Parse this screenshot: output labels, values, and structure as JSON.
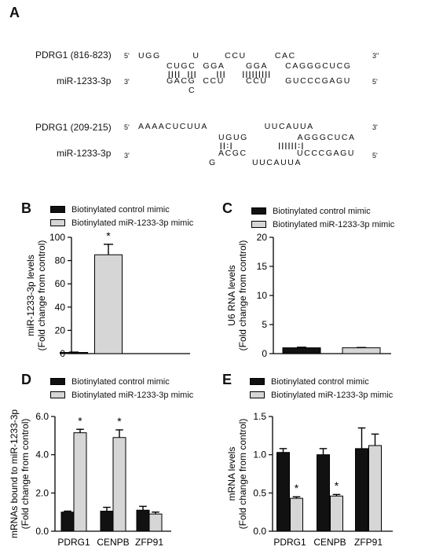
{
  "panels": {
    "A": "A",
    "B": "B",
    "C": "C",
    "D": "D",
    "E": "E"
  },
  "panel_a": {
    "duplex1": {
      "target_label": "PDRG1 (816-823)",
      "mirna_label": "miR-1233-3p",
      "five_prime": "5'",
      "three_prime_top": "3\"",
      "three_prime_bottom": "3'",
      "five_prime_bottom": "5'",
      "top_loop": "UGG         U       CCU        CAC",
      "top_paired": "CUGC  GGA      GGA     CAGGGCUCG",
      "pair_marks": "||||  |||      |||     |||||||||",
      "bottom_paired": "GACG  CCU      CCU     GUCCCGAGU",
      "bottom_loop": "C"
    },
    "duplex2": {
      "target_label": "PDRG1 (209-215)",
      "mirna_label": "miR-1233-3p",
      "five_prime": "5'",
      "three_prime_top": "3'",
      "three_prime_bottom": "3'",
      "five_prime_bottom": "5'",
      "top_loop": "AAAACUCUUA                UUCAUUA",
      "top_paired": "UGUG              AGGGCUCA",
      "pair_marks": "||:|              ||||||:|",
      "bottom_paired": "ACGC              UCCCGAGU",
      "bottom_loop": "G          UUCAUUA"
    }
  },
  "colors": {
    "control": "#111111",
    "mimic": "#d6d6d6",
    "axis": "#000000"
  },
  "legend": {
    "control": "Biotinylated control mimic",
    "mimic": "Biotinylated miR-1233-3p mimic"
  },
  "chart_data": [
    {
      "panel": "B",
      "type": "bar",
      "title": "",
      "xlabel": "",
      "ylabel": "miR-1233-3p levels",
      "ylabel2": "(Fold change from control)",
      "ylim": [
        0,
        100
      ],
      "yticks": [
        "0",
        "20",
        "40",
        "60",
        "80",
        "100"
      ],
      "categories": [
        ""
      ],
      "series": [
        {
          "name": "Biotinylated control mimic",
          "values": [
            1
          ],
          "errors": [
            0.3
          ]
        },
        {
          "name": "Biotinylated miR-1233-3p mimic",
          "values": [
            85
          ],
          "errors": [
            9
          ]
        }
      ],
      "significance": [
        {
          "category": 0,
          "series": 1,
          "label": "*"
        }
      ]
    },
    {
      "panel": "C",
      "type": "bar",
      "title": "",
      "xlabel": "",
      "ylabel": "U6 RNA levels",
      "ylabel2": "(Fold change from control)",
      "ylim": [
        0,
        20
      ],
      "yticks": [
        "0",
        "5",
        "10",
        "15",
        "20"
      ],
      "categories": [
        ""
      ],
      "series": [
        {
          "name": "Biotinylated control mimic",
          "values": [
            1
          ],
          "errors": [
            0.1
          ]
        },
        {
          "name": "Biotinylated miR-1233-3p mimic",
          "values": [
            1
          ],
          "errors": [
            0.05
          ]
        }
      ],
      "significance": []
    },
    {
      "panel": "D",
      "type": "bar",
      "title": "",
      "xlabel": "",
      "ylabel": "mRNAs bound to miR-1233-3p",
      "ylabel2": "(Fold change from control)",
      "ylim": [
        0,
        6
      ],
      "yticks": [
        "0.0",
        "2.0",
        "4.0",
        "6.0"
      ],
      "categories": [
        "PDRG1",
        "CENPB",
        "ZFP91"
      ],
      "series": [
        {
          "name": "Biotinylated control mimic",
          "values": [
            1.0,
            1.05,
            1.1
          ],
          "errors": [
            0.05,
            0.2,
            0.2
          ]
        },
        {
          "name": "Biotinylated miR-1233-3p mimic",
          "values": [
            5.15,
            4.9,
            0.9
          ],
          "errors": [
            0.18,
            0.4,
            0.1
          ]
        }
      ],
      "significance": [
        {
          "category": 0,
          "series": 1,
          "label": "*"
        },
        {
          "category": 1,
          "series": 1,
          "label": "*"
        }
      ]
    },
    {
      "panel": "E",
      "type": "bar",
      "title": "",
      "xlabel": "",
      "ylabel": "mRNA levels",
      "ylabel2": "(Fold change from control)",
      "ylim": [
        0,
        1.5
      ],
      "yticks": [
        "0.0",
        "0.5",
        "1.0",
        "1.5"
      ],
      "categories": [
        "PDRG1",
        "CENPB",
        "ZFP91"
      ],
      "series": [
        {
          "name": "Biotinylated control mimic",
          "values": [
            1.03,
            1.0,
            1.08
          ],
          "errors": [
            0.05,
            0.08,
            0.27
          ]
        },
        {
          "name": "Biotinylated miR-1233-3p mimic",
          "values": [
            0.43,
            0.46,
            1.12
          ],
          "errors": [
            0.02,
            0.02,
            0.15
          ]
        }
      ],
      "significance": [
        {
          "category": 0,
          "series": 1,
          "label": "*"
        },
        {
          "category": 1,
          "series": 1,
          "label": "*"
        }
      ]
    }
  ]
}
